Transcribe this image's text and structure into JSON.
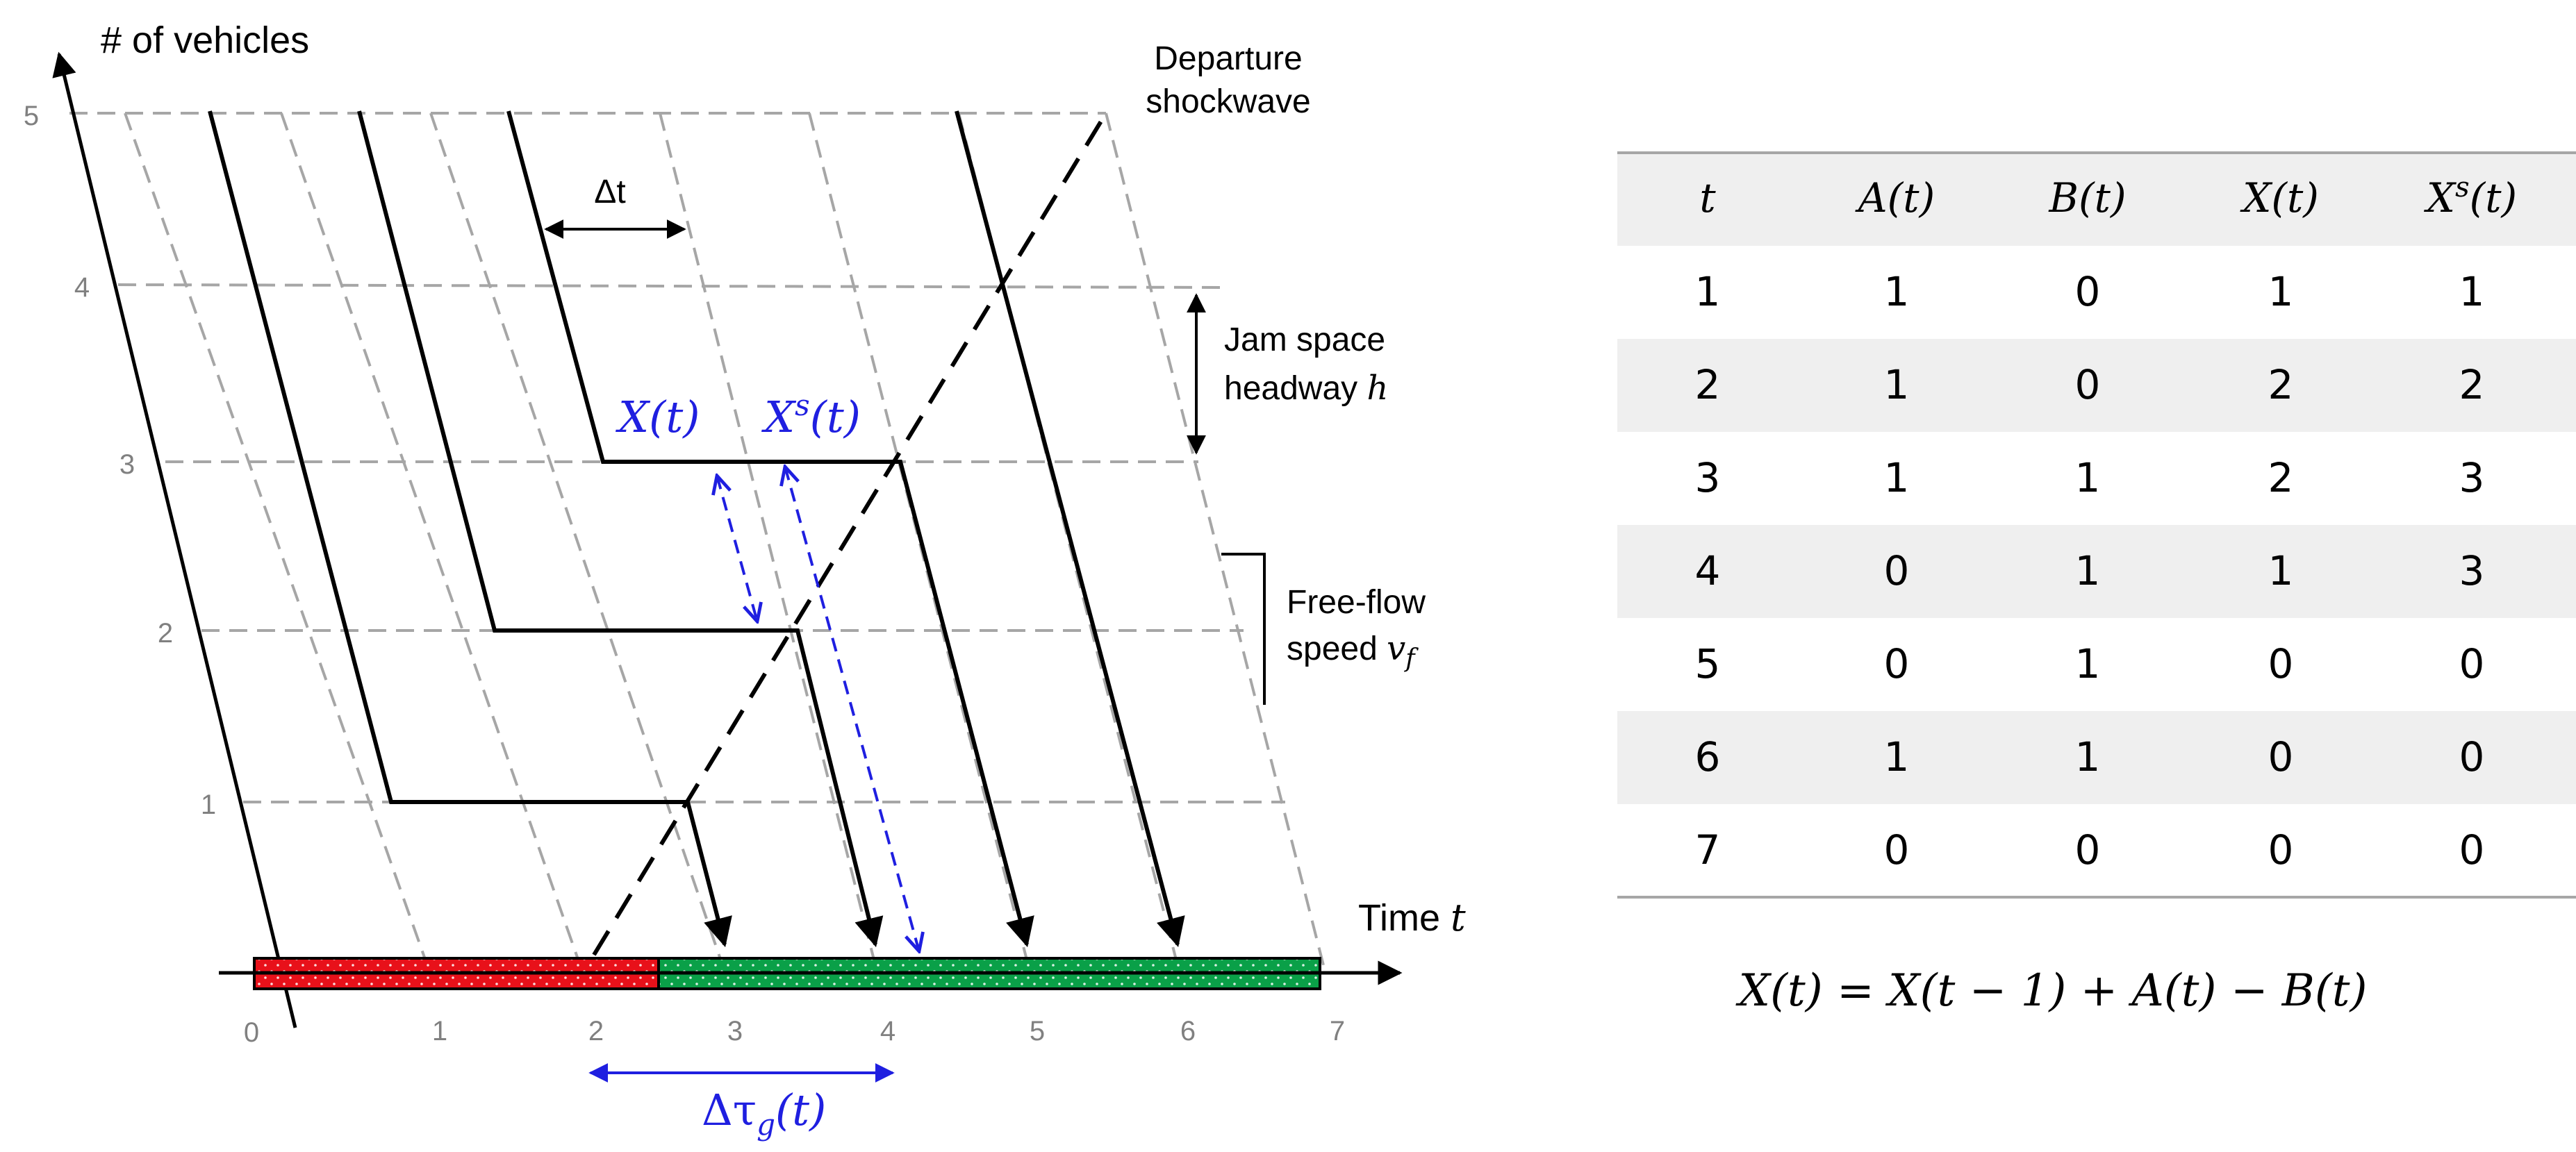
{
  "diagram": {
    "y_axis_label": "# of vehicles",
    "x_axis_label": "Time",
    "x_axis_var": "t",
    "y_ticks": [
      "1",
      "2",
      "3",
      "4",
      "5"
    ],
    "x_ticks": [
      "0",
      "1",
      "2",
      "3",
      "4",
      "5",
      "6",
      "7"
    ],
    "dt_label": "Δt",
    "departure_label_1": "Departure",
    "departure_label_2": "shockwave",
    "jam_label_1": "Jam space",
    "jam_label_2": "headway",
    "jam_var": "h",
    "free_label_1": "Free-flow",
    "free_label_2": "speed",
    "free_var": "v",
    "free_var_sub": "f",
    "x_queue_label": "X(t)",
    "xs_queue_label_base": "X",
    "xs_queue_label_sup": "s",
    "xs_queue_label_tail": "(t)",
    "green_time_base": "Δτ",
    "green_time_sub": "g",
    "green_time_tail": "(t)",
    "colors": {
      "red_phase": "#e8111a",
      "green_phase": "#0aa048",
      "blue": "#1f1fe0",
      "grid": "#a6a6a6"
    }
  },
  "table": {
    "headers": [
      "t",
      "A(t)",
      "B(t)",
      "X(t)",
      "X^s(t)"
    ],
    "header_xs_base": "X",
    "header_xs_sup": "s",
    "header_xs_tail": "(t)",
    "rows": [
      [
        "1",
        "1",
        "0",
        "1",
        "1"
      ],
      [
        "2",
        "1",
        "0",
        "2",
        "2"
      ],
      [
        "3",
        "1",
        "1",
        "2",
        "3"
      ],
      [
        "4",
        "0",
        "1",
        "1",
        "3"
      ],
      [
        "5",
        "0",
        "1",
        "0",
        "0"
      ],
      [
        "6",
        "1",
        "1",
        "0",
        "0"
      ],
      [
        "7",
        "0",
        "0",
        "0",
        "0"
      ]
    ]
  },
  "formula": "X(t) = X(t − 1) + A(t) − B(t)"
}
